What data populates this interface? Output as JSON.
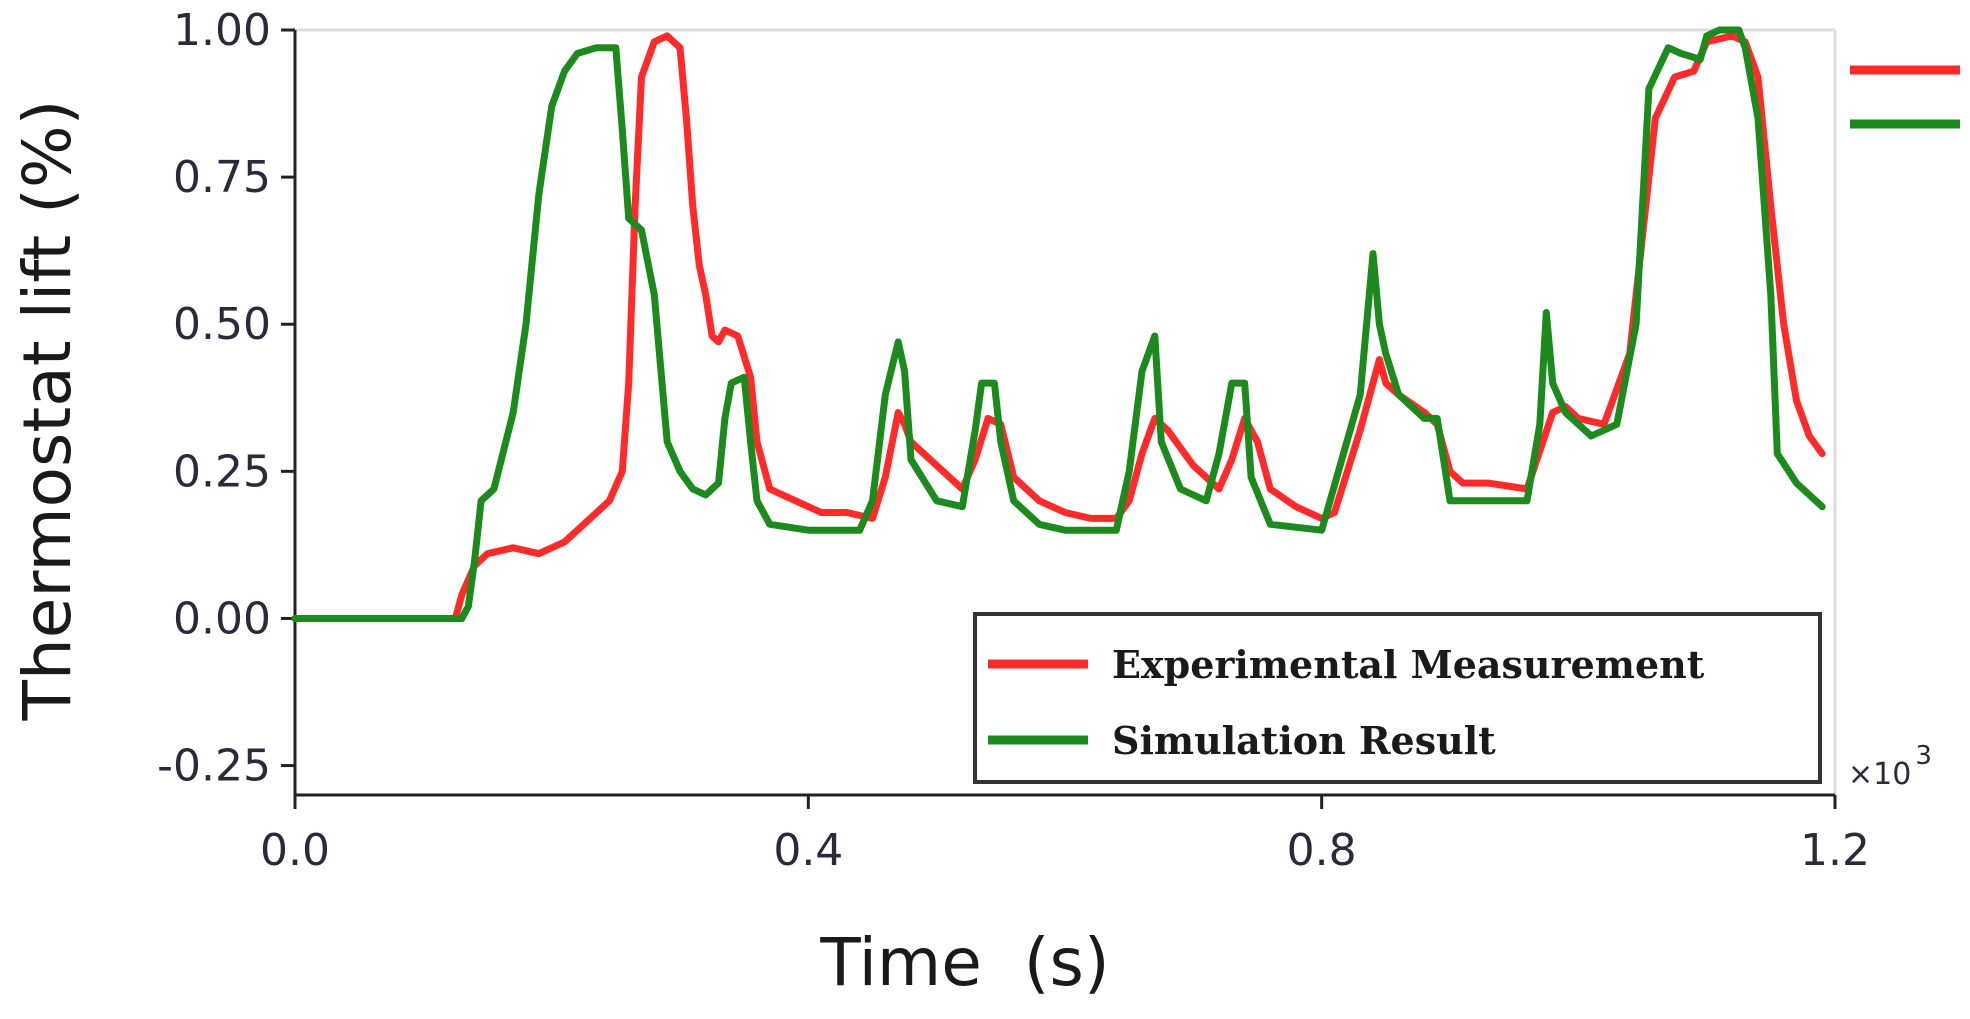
{
  "chart_data": {
    "type": "line",
    "xlabel": "Time  (s)",
    "ylabel": "Thermostat lift  (%)",
    "x_multiplier": "×10",
    "x_multiplier_exp": "3",
    "xlim": [
      0,
      1.2
    ],
    "ylim": [
      -0.3,
      1.0
    ],
    "xticks": [
      0.0,
      0.4,
      0.8,
      1.2
    ],
    "xtick_labels": [
      "0.0",
      "0.4",
      "0.8",
      "1.2"
    ],
    "yticks": [
      -0.25,
      0.0,
      0.25,
      0.5,
      0.75,
      1.0
    ],
    "ytick_labels": [
      "-0.25",
      "0.00",
      "0.25",
      "0.50",
      "0.75",
      "1.00"
    ],
    "legend_position": "bottom-right",
    "series": [
      {
        "name": "Experimental Measurement",
        "color": "#ff2a2a",
        "points": [
          [
            0,
            0
          ],
          [
            0.125,
            0
          ],
          [
            0.13,
            0.04
          ],
          [
            0.14,
            0.09
          ],
          [
            0.15,
            0.11
          ],
          [
            0.17,
            0.12
          ],
          [
            0.19,
            0.11
          ],
          [
            0.21,
            0.13
          ],
          [
            0.23,
            0.17
          ],
          [
            0.245,
            0.2
          ],
          [
            0.255,
            0.25
          ],
          [
            0.26,
            0.4
          ],
          [
            0.265,
            0.7
          ],
          [
            0.27,
            0.92
          ],
          [
            0.28,
            0.98
          ],
          [
            0.29,
            0.99
          ],
          [
            0.3,
            0.97
          ],
          [
            0.305,
            0.85
          ],
          [
            0.31,
            0.7
          ],
          [
            0.315,
            0.6
          ],
          [
            0.32,
            0.55
          ],
          [
            0.325,
            0.48
          ],
          [
            0.33,
            0.47
          ],
          [
            0.335,
            0.49
          ],
          [
            0.345,
            0.48
          ],
          [
            0.355,
            0.41
          ],
          [
            0.36,
            0.3
          ],
          [
            0.37,
            0.22
          ],
          [
            0.39,
            0.2
          ],
          [
            0.41,
            0.18
          ],
          [
            0.43,
            0.18
          ],
          [
            0.45,
            0.17
          ],
          [
            0.46,
            0.24
          ],
          [
            0.47,
            0.35
          ],
          [
            0.475,
            0.33
          ],
          [
            0.48,
            0.3
          ],
          [
            0.5,
            0.26
          ],
          [
            0.52,
            0.22
          ],
          [
            0.53,
            0.27
          ],
          [
            0.54,
            0.34
          ],
          [
            0.55,
            0.33
          ],
          [
            0.56,
            0.24
          ],
          [
            0.58,
            0.2
          ],
          [
            0.6,
            0.18
          ],
          [
            0.62,
            0.17
          ],
          [
            0.64,
            0.17
          ],
          [
            0.65,
            0.2
          ],
          [
            0.66,
            0.28
          ],
          [
            0.67,
            0.34
          ],
          [
            0.68,
            0.32
          ],
          [
            0.7,
            0.26
          ],
          [
            0.72,
            0.22
          ],
          [
            0.73,
            0.27
          ],
          [
            0.74,
            0.34
          ],
          [
            0.75,
            0.3
          ],
          [
            0.76,
            0.22
          ],
          [
            0.78,
            0.19
          ],
          [
            0.8,
            0.17
          ],
          [
            0.81,
            0.18
          ],
          [
            0.83,
            0.32
          ],
          [
            0.845,
            0.44
          ],
          [
            0.85,
            0.4
          ],
          [
            0.86,
            0.38
          ],
          [
            0.88,
            0.35
          ],
          [
            0.89,
            0.33
          ],
          [
            0.9,
            0.25
          ],
          [
            0.91,
            0.23
          ],
          [
            0.93,
            0.23
          ],
          [
            0.96,
            0.22
          ],
          [
            0.98,
            0.35
          ],
          [
            0.99,
            0.36
          ],
          [
            1.0,
            0.34
          ],
          [
            1.02,
            0.33
          ],
          [
            1.04,
            0.45
          ],
          [
            1.06,
            0.85
          ],
          [
            1.075,
            0.92
          ],
          [
            1.09,
            0.93
          ],
          [
            1.1,
            0.98
          ],
          [
            1.12,
            0.99
          ],
          [
            1.13,
            0.98
          ],
          [
            1.14,
            0.92
          ],
          [
            1.15,
            0.7
          ],
          [
            1.16,
            0.5
          ],
          [
            1.17,
            0.37
          ],
          [
            1.18,
            0.31
          ],
          [
            1.19,
            0.28
          ]
        ]
      },
      {
        "name": "Simulation Result",
        "color": "#1c8a1c",
        "points": [
          [
            0,
            0
          ],
          [
            0.13,
            0
          ],
          [
            0.135,
            0.02
          ],
          [
            0.14,
            0.1
          ],
          [
            0.145,
            0.2
          ],
          [
            0.155,
            0.22
          ],
          [
            0.17,
            0.35
          ],
          [
            0.18,
            0.5
          ],
          [
            0.19,
            0.72
          ],
          [
            0.2,
            0.87
          ],
          [
            0.21,
            0.93
          ],
          [
            0.22,
            0.96
          ],
          [
            0.235,
            0.97
          ],
          [
            0.25,
            0.97
          ],
          [
            0.255,
            0.83
          ],
          [
            0.26,
            0.68
          ],
          [
            0.27,
            0.66
          ],
          [
            0.28,
            0.55
          ],
          [
            0.29,
            0.3
          ],
          [
            0.3,
            0.25
          ],
          [
            0.31,
            0.22
          ],
          [
            0.32,
            0.21
          ],
          [
            0.33,
            0.23
          ],
          [
            0.335,
            0.34
          ],
          [
            0.34,
            0.4
          ],
          [
            0.35,
            0.41
          ],
          [
            0.355,
            0.3
          ],
          [
            0.36,
            0.2
          ],
          [
            0.37,
            0.16
          ],
          [
            0.4,
            0.15
          ],
          [
            0.44,
            0.15
          ],
          [
            0.45,
            0.2
          ],
          [
            0.46,
            0.38
          ],
          [
            0.47,
            0.47
          ],
          [
            0.475,
            0.42
          ],
          [
            0.48,
            0.27
          ],
          [
            0.5,
            0.2
          ],
          [
            0.52,
            0.19
          ],
          [
            0.53,
            0.32
          ],
          [
            0.535,
            0.4
          ],
          [
            0.545,
            0.4
          ],
          [
            0.55,
            0.3
          ],
          [
            0.56,
            0.2
          ],
          [
            0.58,
            0.16
          ],
          [
            0.6,
            0.15
          ],
          [
            0.64,
            0.15
          ],
          [
            0.65,
            0.25
          ],
          [
            0.66,
            0.42
          ],
          [
            0.67,
            0.48
          ],
          [
            0.675,
            0.3
          ],
          [
            0.69,
            0.22
          ],
          [
            0.71,
            0.2
          ],
          [
            0.72,
            0.28
          ],
          [
            0.73,
            0.4
          ],
          [
            0.74,
            0.4
          ],
          [
            0.745,
            0.24
          ],
          [
            0.76,
            0.16
          ],
          [
            0.8,
            0.15
          ],
          [
            0.83,
            0.38
          ],
          [
            0.84,
            0.62
          ],
          [
            0.845,
            0.5
          ],
          [
            0.85,
            0.45
          ],
          [
            0.86,
            0.38
          ],
          [
            0.88,
            0.34
          ],
          [
            0.89,
            0.34
          ],
          [
            0.9,
            0.2
          ],
          [
            0.93,
            0.2
          ],
          [
            0.96,
            0.2
          ],
          [
            0.97,
            0.33
          ],
          [
            0.975,
            0.52
          ],
          [
            0.98,
            0.4
          ],
          [
            0.99,
            0.35
          ],
          [
            1.01,
            0.31
          ],
          [
            1.03,
            0.33
          ],
          [
            1.045,
            0.5
          ],
          [
            1.055,
            0.9
          ],
          [
            1.07,
            0.97
          ],
          [
            1.08,
            0.96
          ],
          [
            1.095,
            0.95
          ],
          [
            1.1,
            0.99
          ],
          [
            1.11,
            1.0
          ],
          [
            1.125,
            1.0
          ],
          [
            1.13,
            0.97
          ],
          [
            1.14,
            0.85
          ],
          [
            1.15,
            0.55
          ],
          [
            1.155,
            0.28
          ],
          [
            1.17,
            0.23
          ],
          [
            1.19,
            0.19
          ]
        ]
      }
    ],
    "extra_legend_swatches": [
      "#ff2a2a",
      "#1c8a1c"
    ]
  }
}
